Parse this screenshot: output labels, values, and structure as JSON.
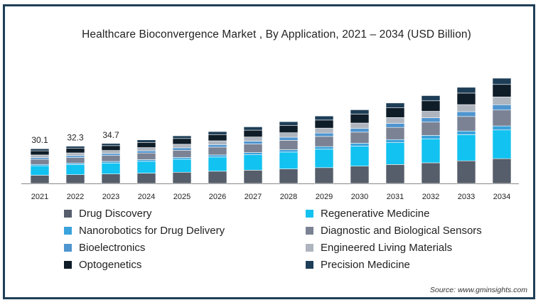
{
  "chart_data": {
    "type": "bar",
    "stacked": true,
    "title": "Healthcare Bioconvergence Market , By Application, 2021 – 2034 (USD Billion)",
    "xlabel": "",
    "ylabel": "",
    "categories": [
      "2021",
      "2022",
      "2023",
      "2024",
      "2025",
      "2026",
      "2027",
      "2028",
      "2029",
      "2030",
      "2031",
      "2032",
      "2033",
      "2034"
    ],
    "totals": [
      30.1,
      32.3,
      34.7,
      37.8,
      41.3,
      45.0,
      49.1,
      53.6,
      58.5,
      63.9,
      69.8,
      76.2,
      83.4,
      91.3
    ],
    "data_labels": [
      "30.1",
      "32.3",
      "34.7"
    ],
    "series": [
      {
        "name": "Drug Discovery",
        "color": "#555e6a",
        "values": [
          7.1,
          7.6,
          8.2,
          8.9,
          9.7,
          10.6,
          11.5,
          12.6,
          13.7,
          15.0,
          16.4,
          17.9,
          19.6,
          21.5
        ]
      },
      {
        "name": "Regenerative Medicine",
        "color": "#12c2f0",
        "values": [
          8.2,
          8.8,
          9.5,
          10.3,
          11.3,
          12.3,
          13.4,
          14.6,
          16.0,
          17.4,
          19.0,
          20.8,
          22.7,
          24.9
        ]
      },
      {
        "name": "Nanorobotics for Drug Delivery",
        "color": "#3aa3db",
        "values": [
          1.2,
          1.3,
          1.4,
          1.5,
          1.6,
          1.8,
          1.9,
          2.1,
          2.3,
          2.5,
          2.7,
          3.0,
          3.2,
          3.5
        ]
      },
      {
        "name": "Diagnostic and Biological Sensors",
        "color": "#7a8294",
        "values": [
          4.5,
          4.8,
          5.2,
          5.7,
          6.2,
          6.8,
          7.4,
          8.1,
          8.8,
          9.6,
          10.5,
          11.5,
          12.6,
          13.8
        ]
      },
      {
        "name": "Bioelectronics",
        "color": "#4f95cf",
        "values": [
          1.5,
          1.6,
          1.7,
          1.9,
          2.1,
          2.2,
          2.5,
          2.7,
          2.9,
          3.2,
          3.5,
          3.8,
          4.2,
          4.6
        ]
      },
      {
        "name": "Engineered Living Materials",
        "color": "#aeb5bf",
        "values": [
          2.2,
          2.4,
          2.6,
          2.8,
          3.1,
          3.3,
          3.6,
          3.9,
          4.3,
          4.7,
          5.1,
          5.6,
          6.1,
          6.7
        ]
      },
      {
        "name": "Optogenetics",
        "color": "#0f1d29",
        "values": [
          3.6,
          3.9,
          4.2,
          4.5,
          5.0,
          5.4,
          5.9,
          6.4,
          7.0,
          7.7,
          8.4,
          9.1,
          10.0,
          10.9
        ]
      },
      {
        "name": "Precision Medicine",
        "color": "#1e3e57",
        "values": [
          1.8,
          1.9,
          1.9,
          2.2,
          2.3,
          2.6,
          2.9,
          3.2,
          3.5,
          3.8,
          4.2,
          4.5,
          5.0,
          5.4
        ]
      }
    ],
    "legend_placement": "bottom",
    "grid": false
  },
  "source": "Source: www.gminsights.com"
}
